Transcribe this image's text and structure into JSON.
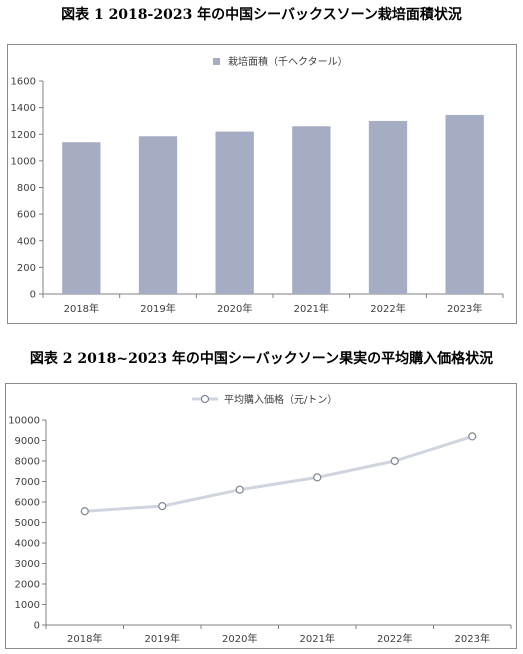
{
  "figure1": {
    "title": "図表 1 2018-2023 年の中国シーバックスソーン栽培面積状況"
  },
  "figure2": {
    "title": "図表 2 2018~2023 年の中国シーバックソーン果実の平均購入価格状況"
  },
  "chart_data": [
    {
      "type": "bar",
      "categories": [
        "2018年",
        "2019年",
        "2020年",
        "2021年",
        "2022年",
        "2023年"
      ],
      "series": [
        {
          "name": "栽培面積（千ヘクタール）",
          "values": [
            1140,
            1185,
            1220,
            1260,
            1300,
            1345
          ]
        }
      ],
      "ylim": [
        0,
        1600
      ],
      "yticks": [
        0,
        200,
        400,
        600,
        800,
        1000,
        1200,
        1400,
        1600
      ],
      "grid": false,
      "legend": "top-center",
      "colors": {
        "bar": "#a5adc4",
        "axis": "#808080"
      }
    },
    {
      "type": "line",
      "categories": [
        "2018年",
        "2019年",
        "2020年",
        "2021年",
        "2022年",
        "2023年"
      ],
      "series": [
        {
          "name": "平均購入価格（元/トン）",
          "values": [
            5550,
            5800,
            6600,
            7200,
            8000,
            9200
          ]
        }
      ],
      "ylim": [
        0,
        10000
      ],
      "yticks": [
        0,
        1000,
        2000,
        3000,
        4000,
        5000,
        6000,
        7000,
        8000,
        9000,
        10000
      ],
      "grid": false,
      "legend": "top-center",
      "colors": {
        "line": "#cfd4de",
        "marker_stroke": "#7f8591",
        "axis": "#808080"
      }
    }
  ]
}
